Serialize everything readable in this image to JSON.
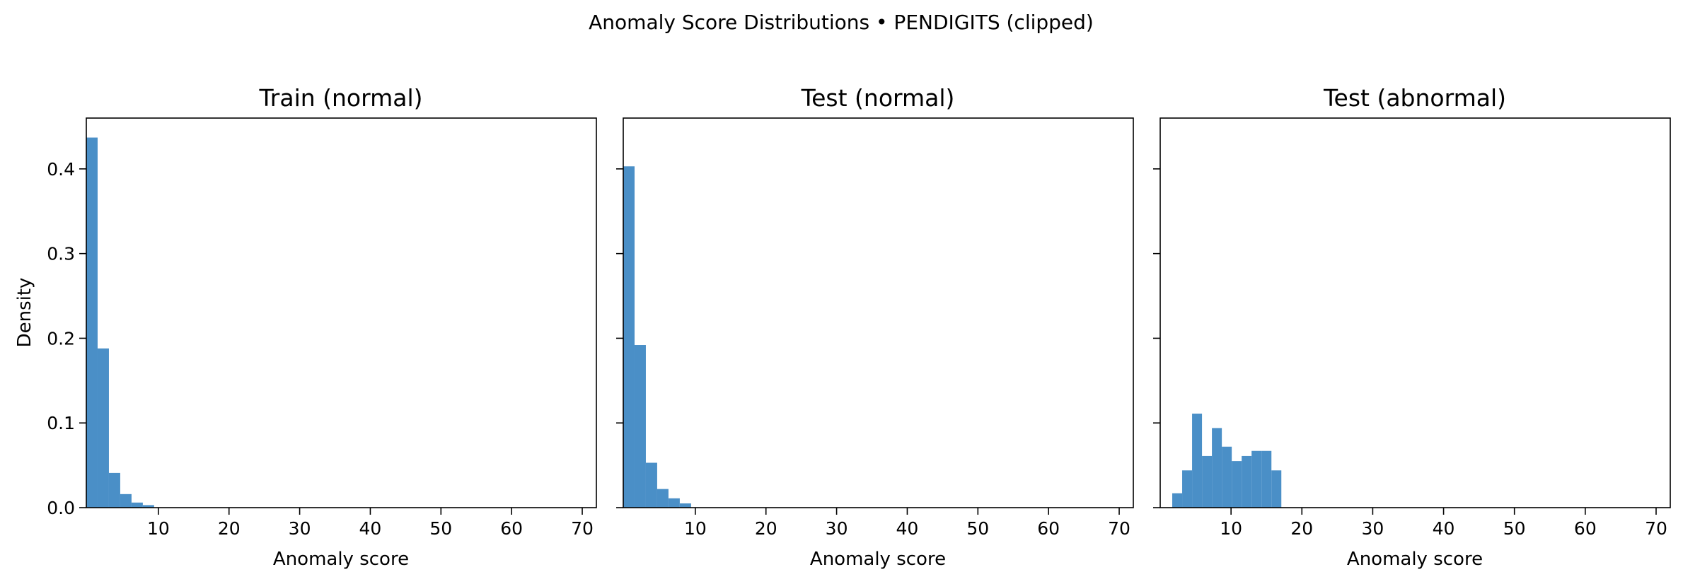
{
  "suptitle": "Anomaly Score Distributions • PENDIGITS (clipped)",
  "colors": {
    "bar": "#4a8fc7"
  },
  "chart_data": [
    {
      "type": "bar",
      "title": "Train (normal)",
      "xlabel": "Anomaly score",
      "ylabel": "Density",
      "xlim": [
        -0.2,
        72
      ],
      "ylim": [
        0,
        0.46
      ],
      "xticks": [
        10,
        20,
        30,
        40,
        50,
        60,
        70
      ],
      "yticks": [
        0.0,
        0.1,
        0.2,
        0.3,
        0.4
      ],
      "bin_edges": [
        -0.2,
        1.4,
        3.0,
        4.6,
        6.2,
        7.8,
        9.4
      ],
      "values": [
        0.437,
        0.188,
        0.041,
        0.016,
        0.006,
        0.003
      ]
    },
    {
      "type": "bar",
      "title": "Test (normal)",
      "xlabel": "Anomaly score",
      "ylabel": "",
      "xlim": [
        -0.2,
        72
      ],
      "ylim": [
        0,
        0.46
      ],
      "xticks": [
        10,
        20,
        30,
        40,
        50,
        60,
        70
      ],
      "yticks": [
        0.0,
        0.1,
        0.2,
        0.3,
        0.4
      ],
      "bin_edges": [
        -0.2,
        1.4,
        3.0,
        4.6,
        6.2,
        7.8,
        9.4
      ],
      "values": [
        0.403,
        0.192,
        0.053,
        0.022,
        0.011,
        0.005
      ]
    },
    {
      "type": "bar",
      "title": "Test (abnormal)",
      "xlabel": "Anomaly score",
      "ylabel": "",
      "xlim": [
        0,
        72
      ],
      "ylim": [
        0,
        0.46
      ],
      "xticks": [
        10,
        20,
        30,
        40,
        50,
        60,
        70
      ],
      "yticks": [
        0.0,
        0.1,
        0.2,
        0.3,
        0.4
      ],
      "bin_edges": [
        1.7,
        3.1,
        4.5,
        5.9,
        7.3,
        8.7,
        10.1,
        11.5,
        12.9,
        14.3,
        15.7,
        17.1
      ],
      "values": [
        0.017,
        0.044,
        0.111,
        0.061,
        0.094,
        0.072,
        0.055,
        0.061,
        0.067,
        0.067,
        0.044
      ]
    }
  ]
}
